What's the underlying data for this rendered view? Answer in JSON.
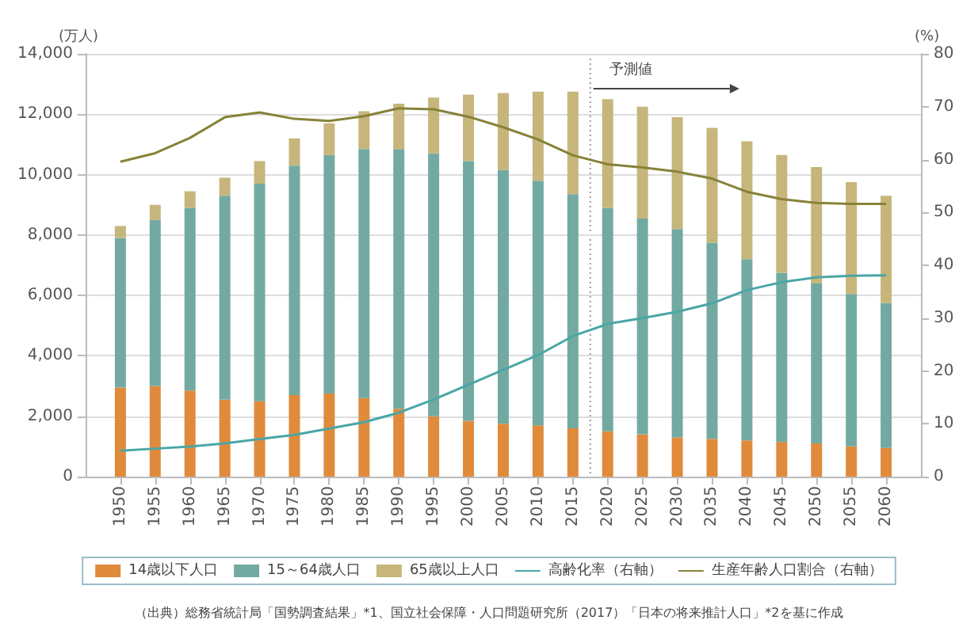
{
  "chart_data": {
    "type": "bar",
    "stacked": true,
    "ylabel": "(万人)",
    "y2label": "(%)",
    "x": [
      1950,
      1955,
      1960,
      1965,
      1970,
      1975,
      1980,
      1985,
      1990,
      1995,
      2000,
      2005,
      2010,
      2015,
      2020,
      2025,
      2030,
      2035,
      2040,
      2045,
      2050,
      2055,
      2060
    ],
    "xlim": [
      1945,
      2065
    ],
    "xticks": [
      1950,
      1955,
      1960,
      1965,
      1970,
      1975,
      1980,
      1985,
      1990,
      1995,
      2000,
      2005,
      2010,
      2015,
      2020,
      2025,
      2030,
      2035,
      2040,
      2045,
      2050,
      2055,
      2060
    ],
    "ylim": [
      0,
      14000
    ],
    "yticks": [
      0,
      {
        "value": 2000,
        "label": "2,000"
      },
      {
        "value": 4000,
        "label": "4,000"
      },
      {
        "value": 6000,
        "label": "6,000"
      },
      {
        "value": 8000,
        "label": "8,000"
      },
      {
        "value": 10000,
        "label": "10,000"
      },
      {
        "value": 12000,
        "label": "12,000"
      },
      {
        "value": 14000,
        "label": "14,000"
      }
    ],
    "y2lim": [
      0,
      80
    ],
    "y2ticks": [
      0,
      10,
      20,
      30,
      40,
      50,
      60,
      70,
      80
    ],
    "grid": "y",
    "legend": "bottom",
    "marker": "none",
    "series": [
      {
        "name": "14歳以下人口",
        "color": "#e08a3c",
        "values": [
          2950,
          3000,
          2850,
          2550,
          2500,
          2700,
          2750,
          2600,
          2250,
          2000,
          1850,
          1750,
          1700,
          1600,
          1500,
          1400,
          1300,
          1250,
          1200,
          1150,
          1100,
          1000,
          950
        ]
      },
      {
        "name": "15～64歳人口",
        "color": "#72aaa2",
        "values": [
          4950,
          5500,
          6050,
          6750,
          7200,
          7600,
          7900,
          8250,
          8600,
          8700,
          8600,
          8400,
          8100,
          7750,
          7400,
          7150,
          6900,
          6500,
          6000,
          5600,
          5300,
          5050,
          4800
        ]
      },
      {
        "name": "65歳以上人口",
        "color": "#c6b67c",
        "values": [
          400,
          500,
          550,
          600,
          750,
          900,
          1050,
          1250,
          1500,
          1850,
          2200,
          2550,
          2950,
          3400,
          3600,
          3700,
          3700,
          3800,
          3900,
          3900,
          3850,
          3700,
          3550
        ]
      },
      {
        "name": "高齢化率（右軸）",
        "type": "line",
        "axis": "y2",
        "color": "#4aa6a6",
        "values": [
          4.9,
          5.3,
          5.7,
          6.3,
          7.1,
          7.9,
          9.1,
          10.3,
          12.1,
          14.6,
          17.4,
          20.2,
          23.0,
          26.6,
          28.9,
          30.0,
          31.2,
          32.8,
          35.3,
          36.8,
          37.7,
          38.0,
          38.1
        ]
      },
      {
        "name": "生産年齢人口割合（右軸）",
        "type": "line",
        "axis": "y2",
        "color": "#878238",
        "values": [
          59.6,
          61.2,
          64.1,
          68.0,
          68.9,
          67.7,
          67.3,
          68.2,
          69.7,
          69.5,
          68.1,
          66.1,
          63.8,
          60.8,
          59.1,
          58.5,
          57.7,
          56.4,
          53.9,
          52.5,
          51.8,
          51.6,
          51.6
        ]
      }
    ],
    "ref_lines": [
      {
        "axis": "x",
        "value": 2017.5,
        "label": "予測値",
        "color": "#999999",
        "line_style": "dotted"
      }
    ],
    "annotations": [
      "（出典）総務省統計局「国勢調査結果」*1、国立社会保障・人口問題研究所（2017）「日本の将来推計人口」*2を基に作成"
    ]
  }
}
